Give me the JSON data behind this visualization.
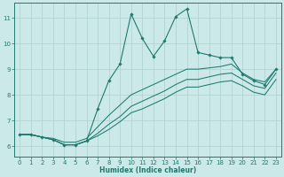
{
  "xlabel": "Humidex (Indice chaleur)",
  "bg_color": "#cce9e9",
  "line_color": "#1e7a6e",
  "grid_color": "#aed0d0",
  "xlim": [
    -0.5,
    23.5
  ],
  "ylim": [
    5.6,
    11.6
  ],
  "xticks": [
    0,
    1,
    2,
    3,
    4,
    5,
    6,
    7,
    8,
    9,
    10,
    11,
    12,
    13,
    14,
    15,
    16,
    17,
    18,
    19,
    20,
    21,
    22,
    23
  ],
  "yticks": [
    6,
    7,
    8,
    9,
    10,
    11
  ],
  "series": [
    {
      "x": [
        0,
        1,
        2,
        3,
        4,
        5,
        6,
        7,
        8,
        9,
        10,
        11,
        12,
        13,
        14,
        15,
        16,
        17,
        18,
        19,
        20,
        21,
        22,
        23
      ],
      "y": [
        6.45,
        6.45,
        6.35,
        6.25,
        6.05,
        6.05,
        6.2,
        7.45,
        8.55,
        9.2,
        11.15,
        10.2,
        9.5,
        10.1,
        11.05,
        11.35,
        9.65,
        9.55,
        9.45,
        9.45,
        8.8,
        8.55,
        8.4,
        9.0
      ],
      "marker": true
    },
    {
      "x": [
        0,
        1,
        2,
        3,
        4,
        5,
        6,
        7,
        8,
        9,
        10,
        11,
        12,
        13,
        14,
        15,
        16,
        17,
        18,
        19,
        20,
        21,
        22,
        23
      ],
      "y": [
        6.45,
        6.45,
        6.35,
        6.3,
        6.15,
        6.15,
        6.3,
        6.75,
        7.2,
        7.6,
        8.0,
        8.2,
        8.4,
        8.6,
        8.8,
        9.0,
        9.0,
        9.05,
        9.1,
        9.2,
        8.85,
        8.6,
        8.5,
        9.0
      ],
      "marker": false
    },
    {
      "x": [
        0,
        1,
        2,
        3,
        4,
        5,
        6,
        7,
        8,
        9,
        10,
        11,
        12,
        13,
        14,
        15,
        16,
        17,
        18,
        19,
        20,
        21,
        22,
        23
      ],
      "y": [
        6.45,
        6.45,
        6.35,
        6.25,
        6.05,
        6.05,
        6.2,
        6.5,
        6.85,
        7.15,
        7.55,
        7.75,
        7.95,
        8.15,
        8.4,
        8.6,
        8.6,
        8.7,
        8.8,
        8.85,
        8.6,
        8.35,
        8.25,
        8.85
      ],
      "marker": false
    },
    {
      "x": [
        0,
        1,
        2,
        3,
        4,
        5,
        6,
        7,
        8,
        9,
        10,
        11,
        12,
        13,
        14,
        15,
        16,
        17,
        18,
        19,
        20,
        21,
        22,
        23
      ],
      "y": [
        6.45,
        6.45,
        6.35,
        6.25,
        6.05,
        6.05,
        6.2,
        6.4,
        6.65,
        6.95,
        7.3,
        7.45,
        7.65,
        7.85,
        8.1,
        8.3,
        8.3,
        8.4,
        8.5,
        8.55,
        8.35,
        8.1,
        8.0,
        8.6
      ],
      "marker": false
    }
  ]
}
